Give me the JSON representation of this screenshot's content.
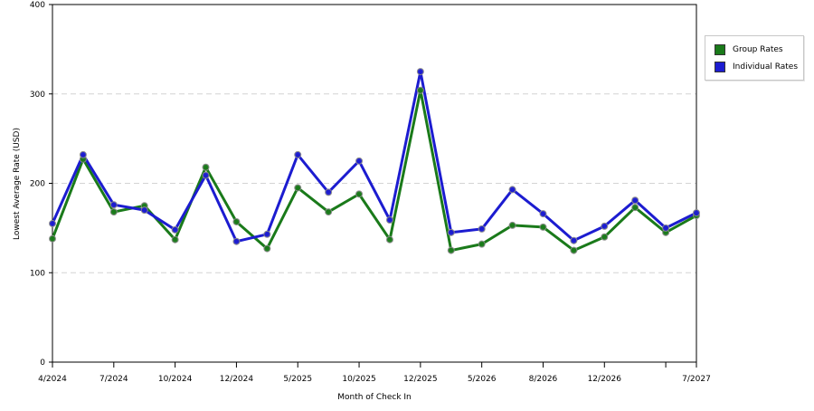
{
  "chart_data": {
    "type": "line",
    "xlabel": "Month of Check In",
    "ylabel": "Lowest Average Rate (USD)",
    "ylim": [
      0,
      400
    ],
    "yticks": [
      0,
      100,
      200,
      300,
      400
    ],
    "grid": true,
    "legend_position": "right",
    "x_tick_labels": [
      "4/2024",
      "7/2024",
      "10/2024",
      "12/2024",
      "5/2025",
      "10/2025",
      "12/2025",
      "5/2026",
      "8/2026",
      "12/2026",
      "",
      "7/2027"
    ],
    "x_tick_positions": [
      0,
      2,
      4,
      6,
      8,
      10,
      12,
      14,
      16,
      18,
      20,
      21
    ],
    "series": [
      {
        "name": "Group Rates",
        "color": "#1a7a1a",
        "values": [
          138,
          227,
          168,
          175,
          137,
          218,
          157,
          127,
          195,
          168,
          188,
          137,
          304,
          125,
          132,
          153,
          151,
          125,
          140,
          173,
          145,
          164
        ]
      },
      {
        "name": "Individual Rates",
        "color": "#1c1cd0",
        "values": [
          155,
          232,
          176,
          170,
          148,
          209,
          135,
          143,
          232,
          190,
          225,
          159,
          325,
          145,
          149,
          193,
          166,
          136,
          152,
          181,
          150,
          167
        ]
      }
    ]
  }
}
